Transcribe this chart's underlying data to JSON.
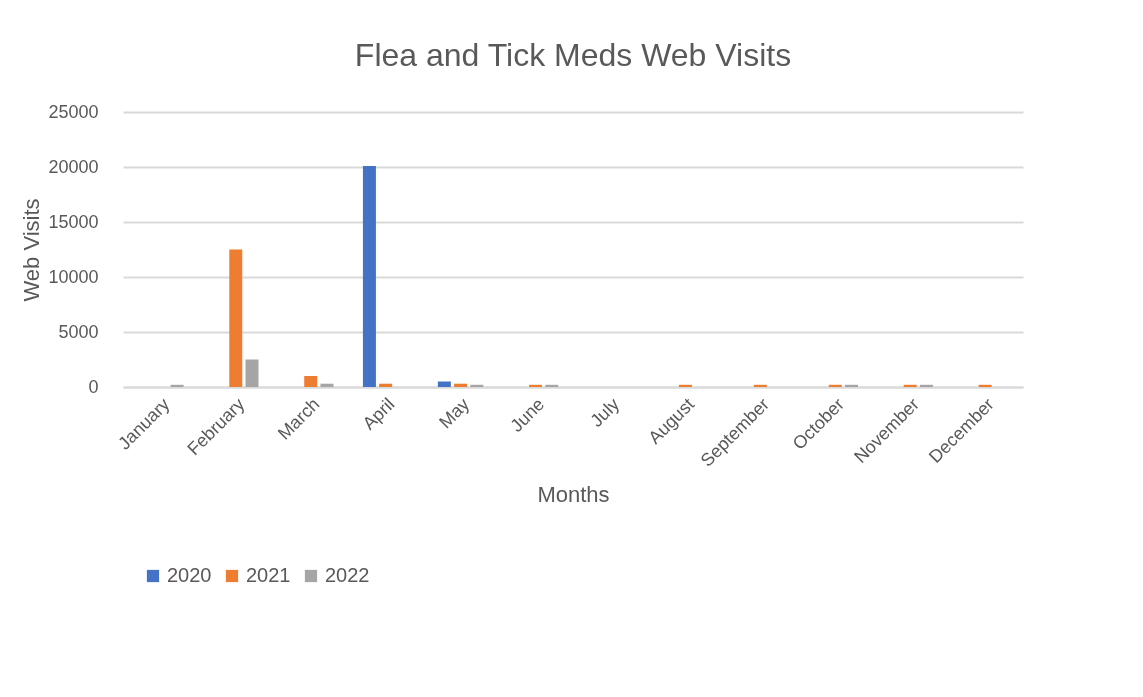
{
  "chart_data": {
    "type": "bar",
    "title": "Flea and Tick Meds Web Visits",
    "xlabel": "Months",
    "ylabel": "Web Visits",
    "categories": [
      "January",
      "February",
      "March",
      "April",
      "May",
      "June",
      "July",
      "August",
      "September",
      "October",
      "November",
      "December"
    ],
    "series": [
      {
        "name": "2020",
        "color": "#4472c4",
        "values": [
          null,
          null,
          null,
          20100,
          500,
          null,
          null,
          null,
          null,
          null,
          null,
          null
        ]
      },
      {
        "name": "2021",
        "color": "#ed7d31",
        "values": [
          null,
          12500,
          1000,
          300,
          300,
          200,
          null,
          200,
          200,
          200,
          200,
          200
        ]
      },
      {
        "name": "2022",
        "color": "#a5a5a5",
        "values": [
          200,
          2500,
          300,
          null,
          200,
          200,
          null,
          null,
          null,
          200,
          200,
          null
        ]
      }
    ],
    "ylim": [
      0,
      25000
    ],
    "yticks": [
      0,
      5000,
      10000,
      15000,
      20000,
      25000
    ],
    "grid": "y",
    "legend": "bottom"
  }
}
